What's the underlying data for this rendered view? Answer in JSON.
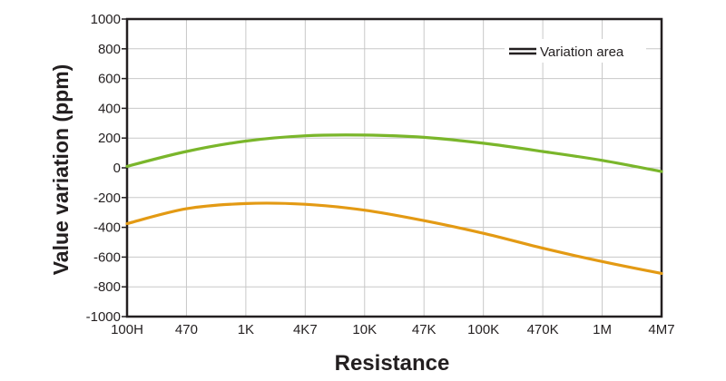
{
  "chart_data": {
    "type": "line",
    "title": "",
    "xlabel": "Resistance",
    "ylabel": "Value variation (ppm)",
    "categories": [
      "100H",
      "470",
      "1K",
      "4K7",
      "10K",
      "47K",
      "100K",
      "470K",
      "1M",
      "4M7"
    ],
    "y_ticks": [
      "1000",
      "800",
      "600",
      "400",
      "200",
      "0",
      "-200",
      "-400",
      "-600",
      "-800",
      "-1000"
    ],
    "ylim": [
      -1000,
      1000
    ],
    "grid": true,
    "legend": {
      "placement": "top-right",
      "label": "Variation area"
    },
    "series": [
      {
        "color": "#7ab62b",
        "values": [
          10,
          110,
          180,
          215,
          220,
          205,
          165,
          110,
          50,
          -25
        ]
      },
      {
        "color": "#e39a14",
        "values": [
          -375,
          -275,
          -240,
          -245,
          -285,
          -355,
          -440,
          -540,
          -630,
          -710
        ]
      }
    ]
  }
}
